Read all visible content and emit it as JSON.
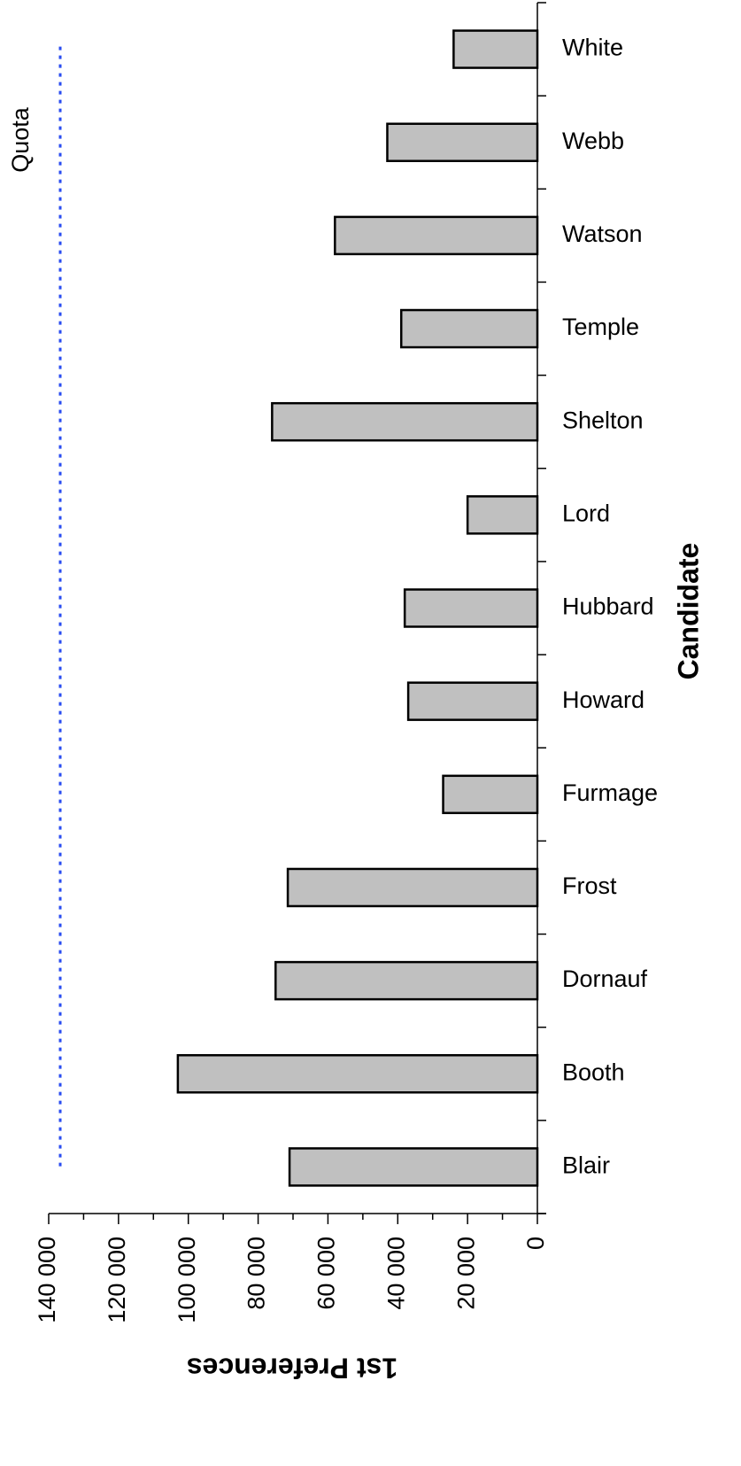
{
  "chart_data": {
    "type": "bar",
    "orientation": "horizontal",
    "x_label": "1st Preferences",
    "y_label": "Candidate",
    "categories": [
      "Blair",
      "Booth",
      "Dornauf",
      "Frost",
      "Furmage",
      "Howard",
      "Hubbard",
      "Lord",
      "Shelton",
      "Temple",
      "Watson",
      "Webb",
      "White"
    ],
    "values": [
      71000,
      103000,
      75000,
      71500,
      27000,
      37000,
      38000,
      20000,
      76000,
      39000,
      58000,
      43000,
      24000
    ],
    "color": "#c0c0c0",
    "xlim": [
      0,
      140000
    ],
    "xticks": [
      0,
      {
        "value": 20000,
        "label": "20 000"
      },
      {
        "value": 40000,
        "label": "40 000"
      },
      {
        "value": 60000,
        "label": "60 000"
      },
      {
        "value": 80000,
        "label": "80 000"
      },
      {
        "value": 100000,
        "label": "100 000"
      },
      {
        "value": 120000,
        "label": "120 000"
      },
      {
        "value": 140000,
        "label": "140 000"
      }
    ],
    "reference_line": {
      "label": "Quota",
      "value": 136700,
      "color": "#2a4df0"
    }
  }
}
